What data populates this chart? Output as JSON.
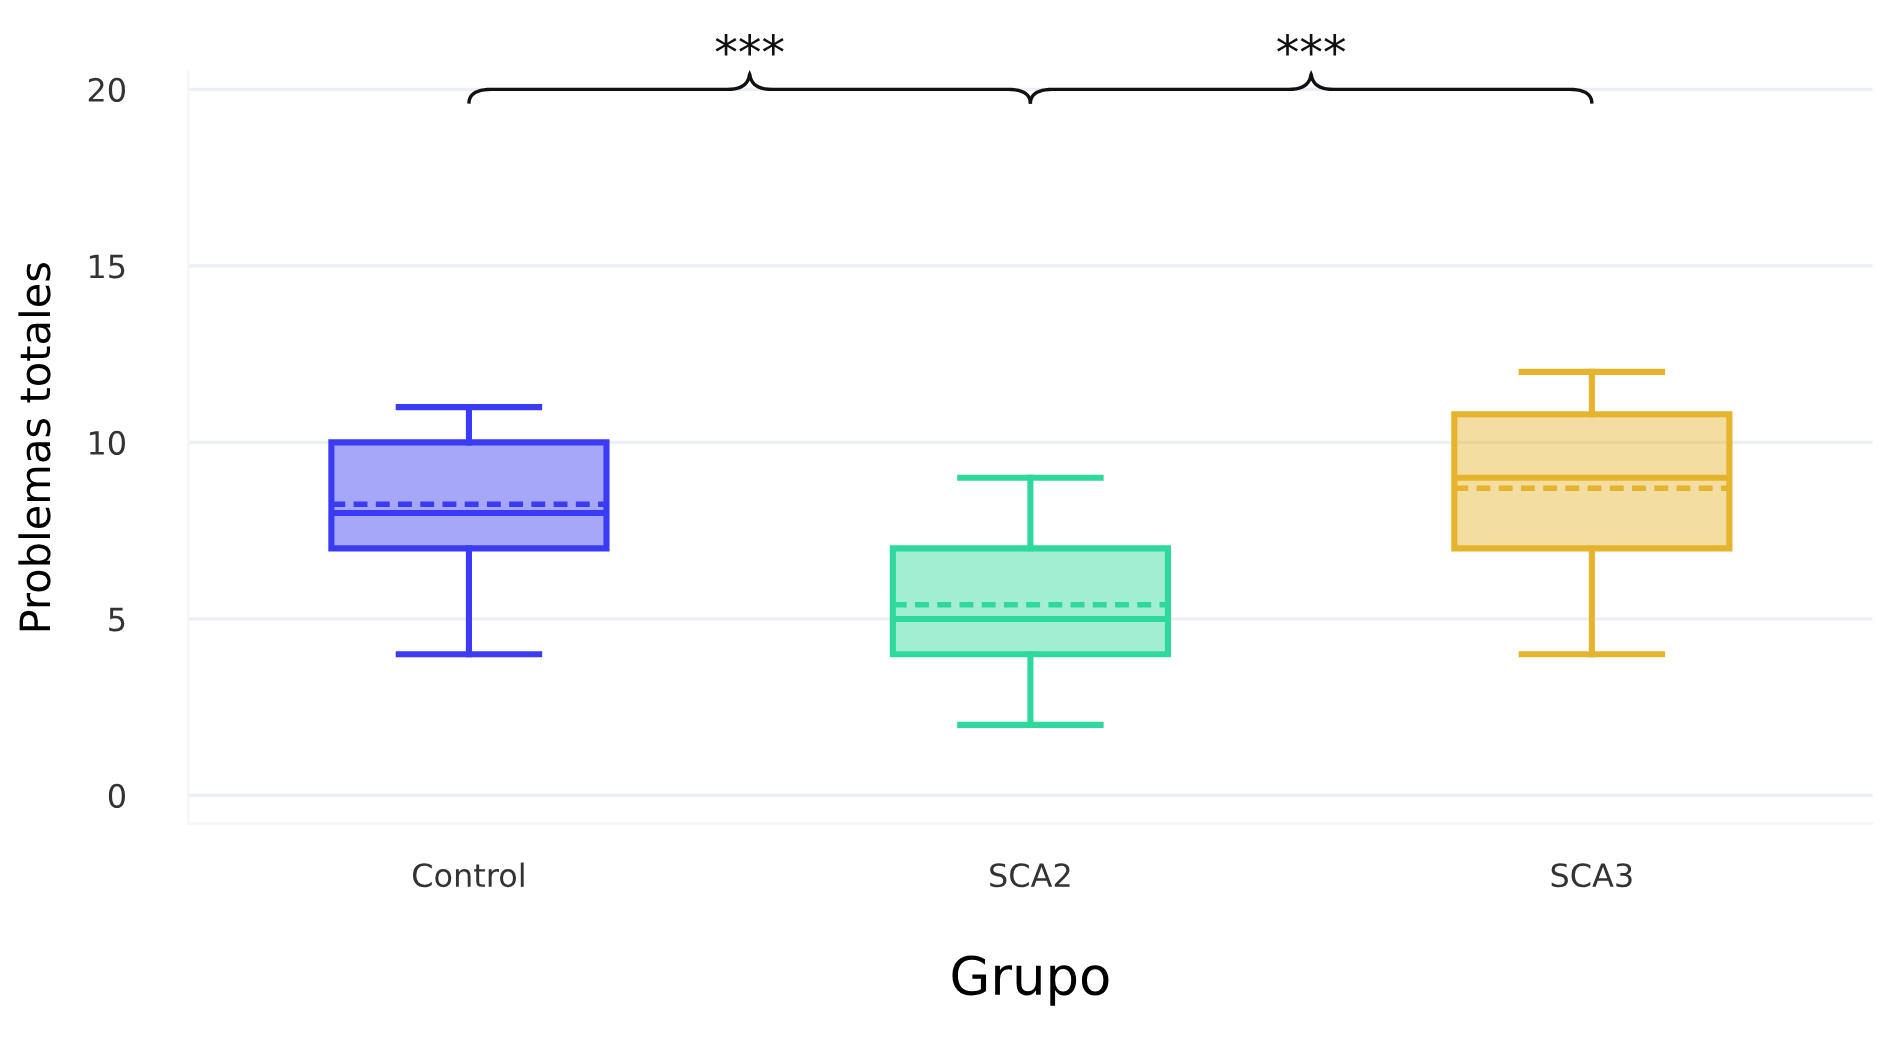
{
  "chart_data": {
    "type": "box",
    "xlabel": "Grupo",
    "ylabel": "Problemas totales",
    "categories": [
      "Control",
      "SCA2",
      "SCA3"
    ],
    "series": [
      {
        "boxes": [
          {
            "low": 4,
            "q1": 7,
            "median": 8,
            "q3": 10,
            "high": 11,
            "mean": 8.25
          },
          {
            "low": 2,
            "q1": 4,
            "median": 5,
            "q3": 7,
            "high": 9,
            "mean": 5.4
          },
          {
            "low": 4,
            "q1": 7,
            "median": 9,
            "q3": 10.8,
            "high": 12,
            "mean": 8.7
          }
        ],
        "colors": [
          "#3b3bf5",
          "#2fd99b",
          "#e6b42c"
        ]
      }
    ],
    "ylim": [
      -0.8,
      20.5
    ],
    "yticks": [
      0,
      5,
      10,
      15,
      20
    ],
    "grid": "y",
    "annotations": [
      "***",
      "***"
    ]
  }
}
